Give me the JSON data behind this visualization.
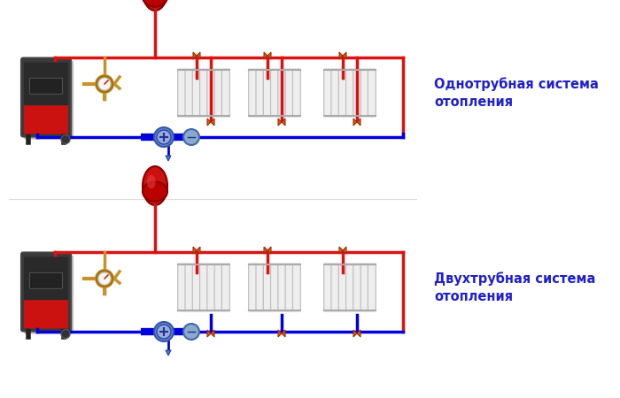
{
  "bg_color": "#ffffff",
  "label1": "Однотрубная система\nотопления",
  "label2": "Двухтрубная система\nотопления",
  "label_color": "#2020cc",
  "label_fontsize": 10.5,
  "red": "#dd1111",
  "blue": "#0000dd",
  "pipe_lw": 2.5,
  "fig_width": 7.0,
  "fig_height": 4.5,
  "dpi": 100
}
